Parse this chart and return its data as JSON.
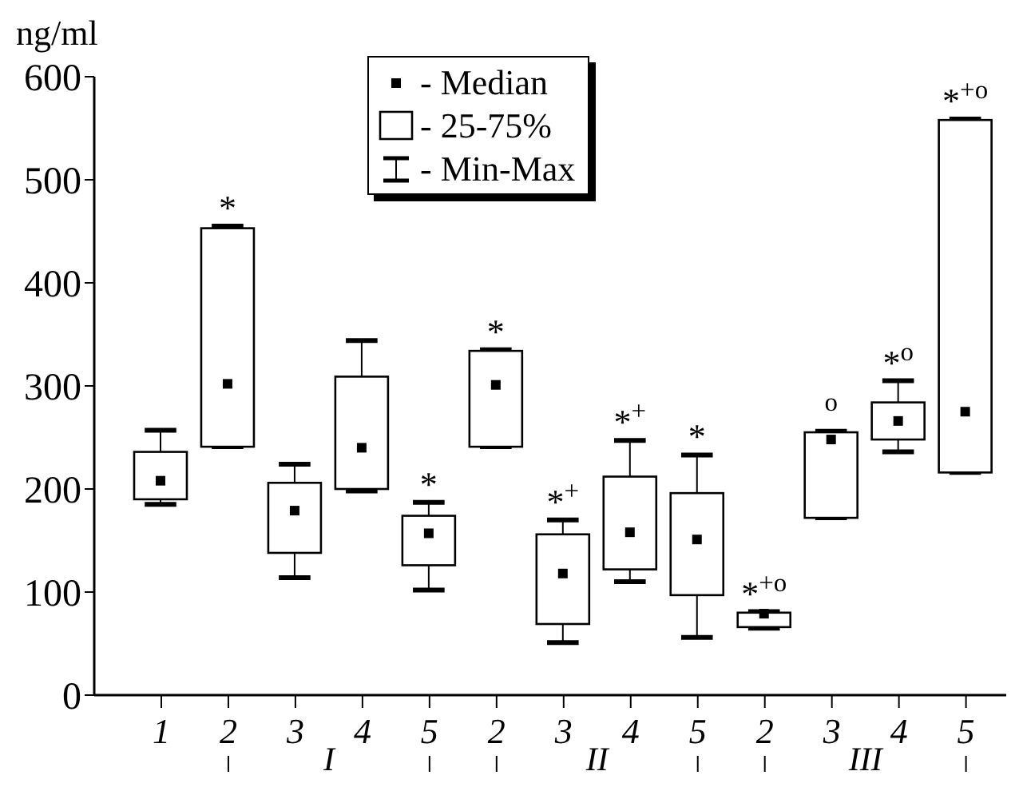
{
  "chart_data": {
    "type": "box",
    "ylabel": "ng/ml",
    "categories": [
      "1",
      "2",
      "3",
      "4",
      "5",
      "2",
      "3",
      "4",
      "5",
      "2",
      "3",
      "4",
      "5"
    ],
    "boxes": [
      {
        "low": 185,
        "q1": 190,
        "median": 208,
        "q3": 236,
        "high": 257
      },
      {
        "low": 241,
        "q1": 241,
        "median": 302,
        "q3": 453,
        "high": 455
      },
      {
        "low": 114,
        "q1": 138,
        "median": 179,
        "q3": 206,
        "high": 224
      },
      {
        "low": 198,
        "q1": 200,
        "median": 240,
        "q3": 309,
        "high": 344
      },
      {
        "low": 102,
        "q1": 126,
        "median": 157,
        "q3": 174,
        "high": 187
      },
      {
        "low": 241,
        "q1": 241,
        "median": 301,
        "q3": 334,
        "high": 335
      },
      {
        "low": 51,
        "q1": 69,
        "median": 118,
        "q3": 156,
        "high": 170
      },
      {
        "low": 110,
        "q1": 122,
        "median": 158,
        "q3": 212,
        "high": 247
      },
      {
        "low": 56,
        "q1": 97,
        "median": 151,
        "q3": 196,
        "high": 233
      },
      {
        "low": 65,
        "q1": 66,
        "median": 79,
        "q3": 80,
        "high": 81
      },
      {
        "low": 172,
        "q1": 172,
        "median": 248,
        "q3": 255,
        "high": 256
      },
      {
        "low": 236,
        "q1": 248,
        "median": 266,
        "q3": 284,
        "high": 305
      },
      {
        "low": 216,
        "q1": 216,
        "median": 275,
        "q3": 558,
        "high": 559
      }
    ],
    "ylim": [
      0,
      600
    ],
    "yticks": [
      0,
      100,
      200,
      300,
      400,
      500,
      600
    ],
    "annotations": [
      "- Median",
      "- 25-75%",
      "- Min-Max",
      "I",
      "II",
      "III",
      {
        "text": "*",
        "y": 455
      },
      {
        "text": "*",
        "y": 187
      },
      {
        "text": "*",
        "y": 335
      },
      {
        "text": "*$^{+}$",
        "y": 170
      },
      {
        "text": "*$^{+}$",
        "y": 247
      },
      {
        "text": "*",
        "y": 233
      },
      {
        "text": "*$^{+o}$",
        "y": 81
      },
      {
        "text": "$^{o}$",
        "y": 256
      },
      {
        "text": "*$^{o}$",
        "y": 305
      },
      {
        "text": "*$^{+o}$",
        "y": 559
      }
    ]
  }
}
